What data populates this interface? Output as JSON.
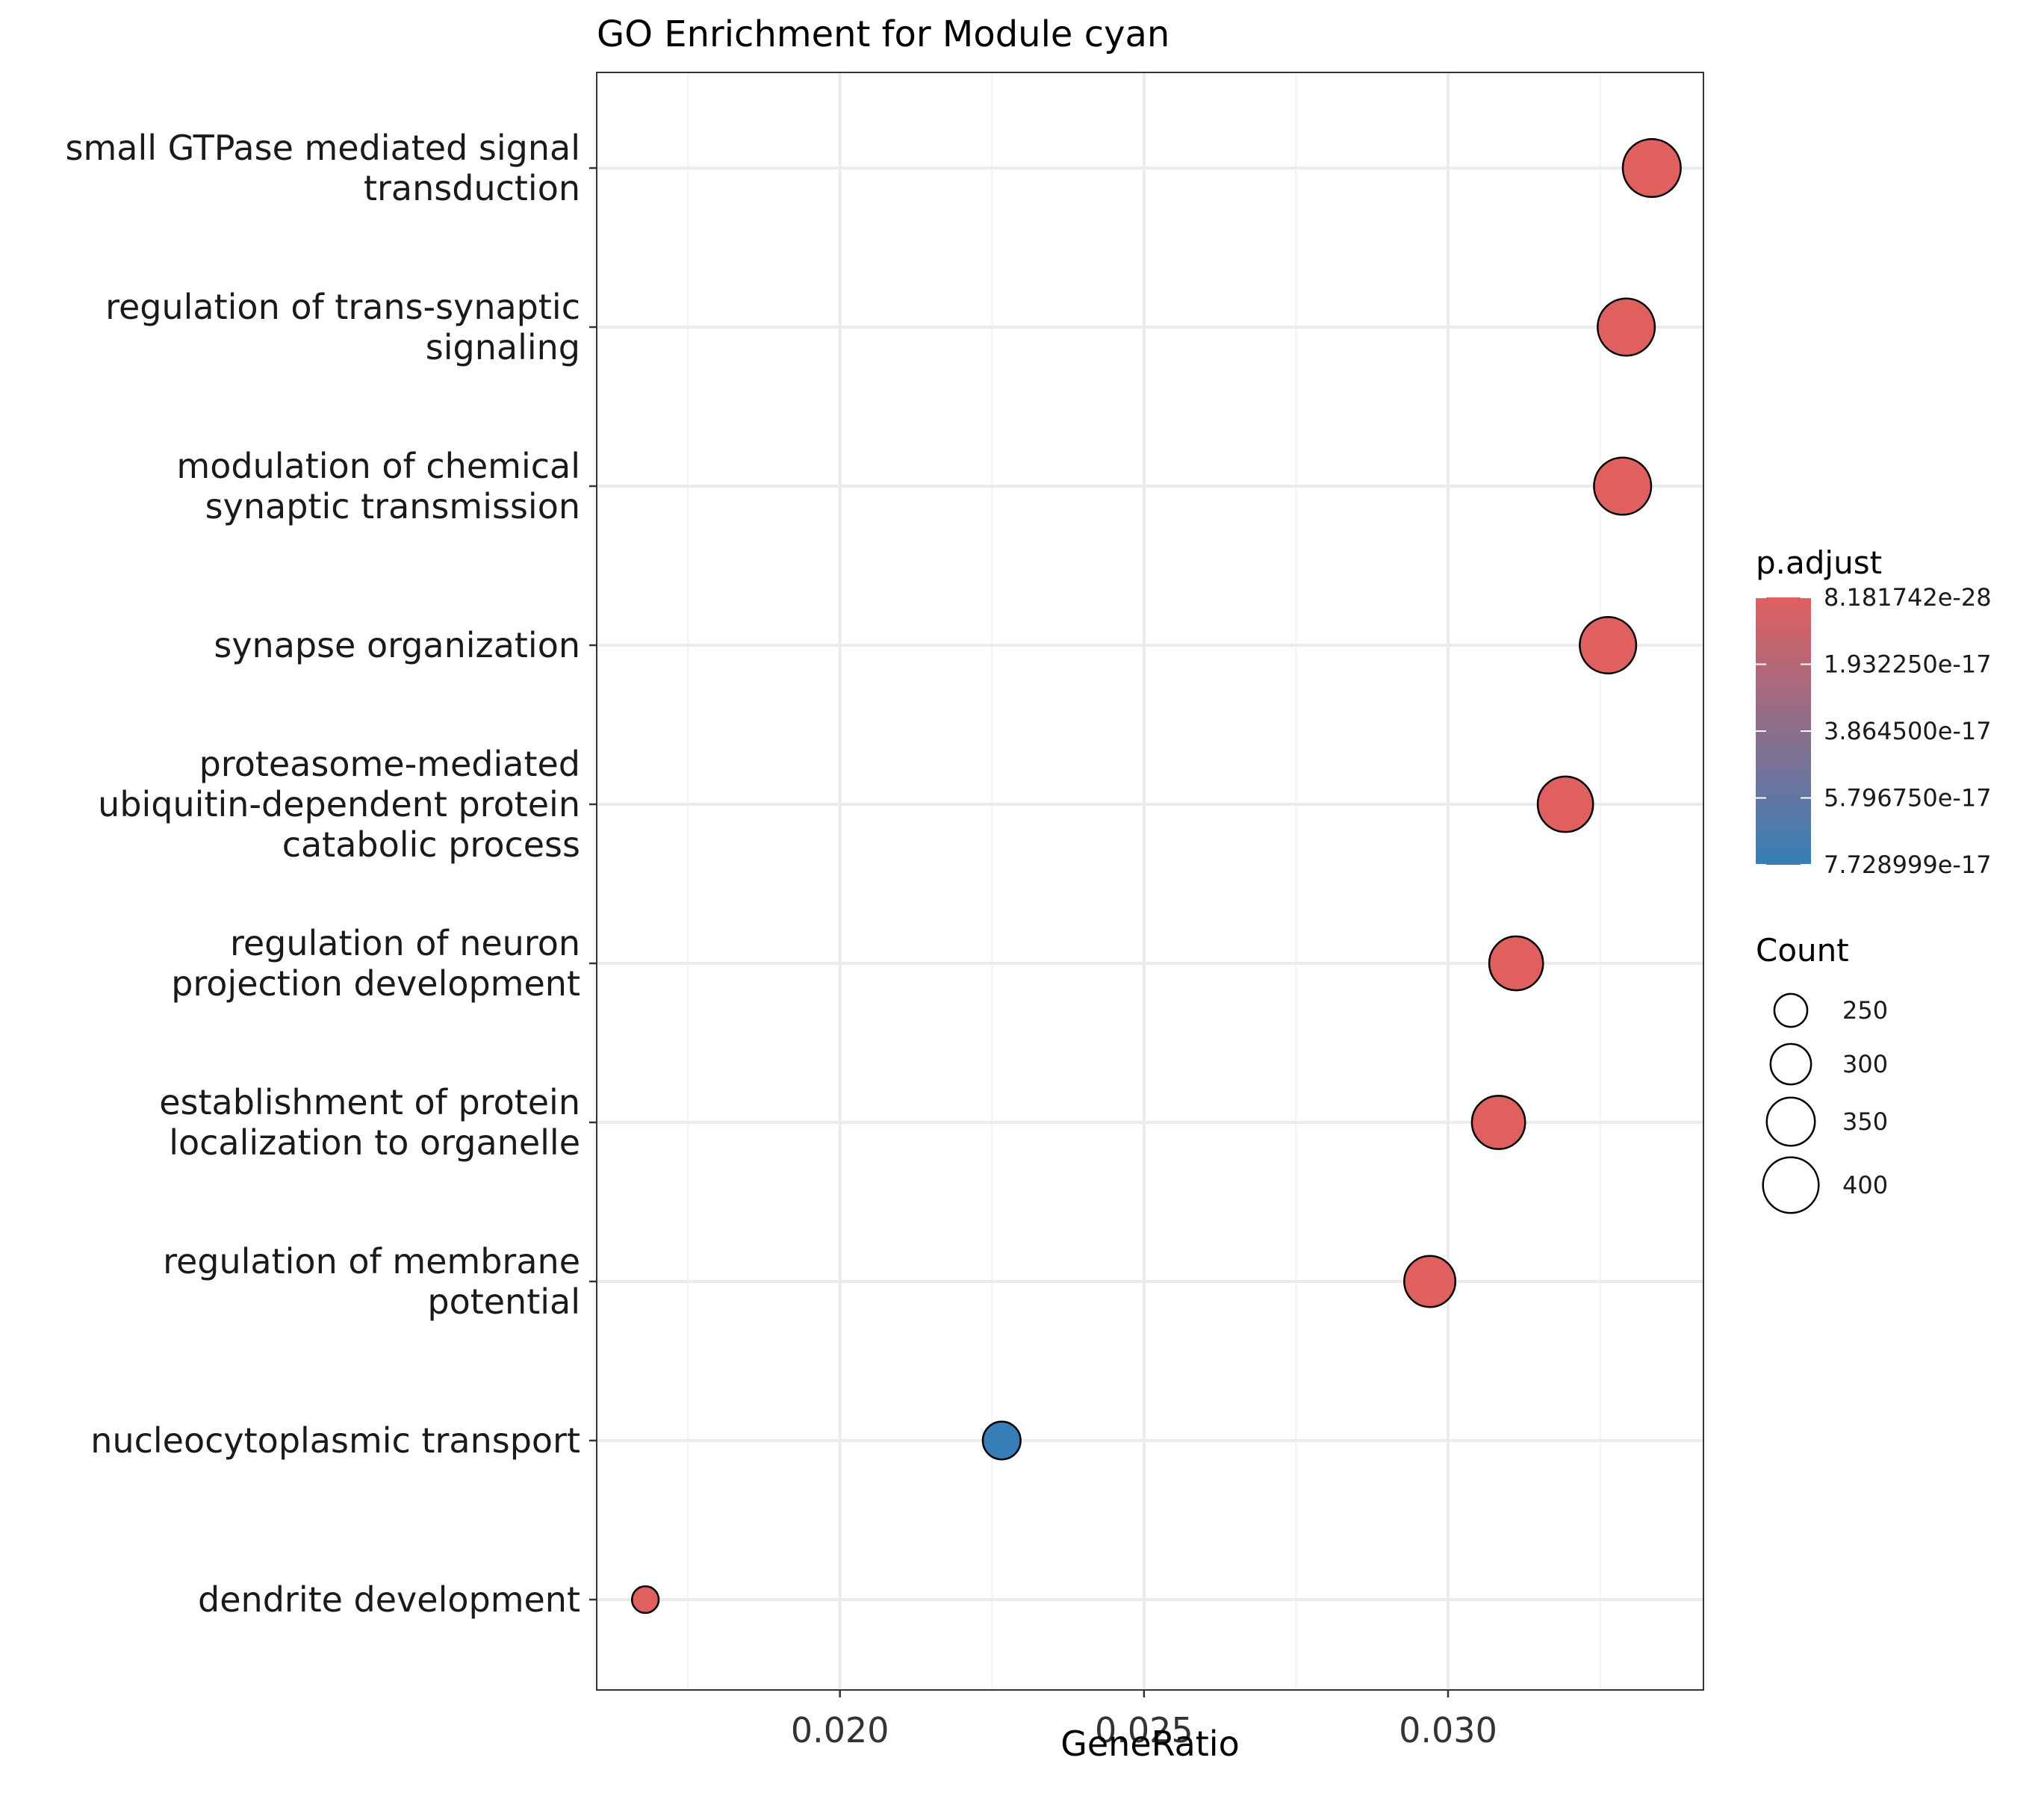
{
  "chart_data": {
    "type": "scatter",
    "title": "GO Enrichment for Module cyan",
    "xlabel": "GeneRatio",
    "ylabel": "",
    "xlim": [
      0.016,
      0.0342
    ],
    "xticks": [
      0.02,
      0.025,
      0.03
    ],
    "xtick_labels": [
      "0.020",
      "0.025",
      "0.030"
    ],
    "xminor": [
      0.0175,
      0.0225,
      0.0275,
      0.0325
    ],
    "grid": true,
    "categories": [
      [
        "small GTPase mediated signal",
        "transduction"
      ],
      [
        "regulation of trans-synaptic",
        "signaling"
      ],
      [
        "modulation of chemical",
        "synaptic transmission"
      ],
      [
        "synapse organization"
      ],
      [
        "proteasome-mediated",
        "ubiquitin-dependent protein",
        "catabolic process"
      ],
      [
        "regulation of neuron",
        "projection development"
      ],
      [
        "establishment of protein",
        "localization to organelle"
      ],
      [
        "regulation of membrane",
        "potential"
      ],
      [
        "nucleocytoplasmic transport"
      ],
      [
        "dendrite development"
      ]
    ],
    "points": [
      {
        "gene_ratio": 0.03335,
        "count": 415,
        "p_adjust": 1e-27
      },
      {
        "gene_ratio": 0.03293,
        "count": 410,
        "p_adjust": 1e-27
      },
      {
        "gene_ratio": 0.03287,
        "count": 410,
        "p_adjust": 1e-27
      },
      {
        "gene_ratio": 0.03263,
        "count": 405,
        "p_adjust": 1e-27
      },
      {
        "gene_ratio": 0.03193,
        "count": 398,
        "p_adjust": 1e-27
      },
      {
        "gene_ratio": 0.03112,
        "count": 388,
        "p_adjust": 1e-27
      },
      {
        "gene_ratio": 0.03083,
        "count": 384,
        "p_adjust": 1e-27
      },
      {
        "gene_ratio": 0.0297,
        "count": 370,
        "p_adjust": 1e-27
      },
      {
        "gene_ratio": 0.02266,
        "count": 282,
        "p_adjust": 7.728999e-17
      },
      {
        "gene_ratio": 0.0168,
        "count": 209,
        "p_adjust": 1e-27
      }
    ],
    "color_legend": {
      "title": "p.adjust",
      "range": [
        8.181742e-28,
        7.728999e-17
      ],
      "breaks": [
        8.181742e-28,
        1.93225e-17,
        3.8645e-17,
        5.79675e-17,
        7.728999e-17
      ],
      "labels": [
        "8.181742e-28",
        "1.932250e-17",
        "3.864500e-17",
        "5.796750e-17",
        "7.728999e-17"
      ],
      "low_color": "#E0605F",
      "high_color": "#377EB8"
    },
    "size_legend": {
      "title": "Count",
      "breaks": [
        250,
        300,
        350,
        400
      ],
      "labels": [
        "250",
        "300",
        "350",
        "400"
      ]
    },
    "legend_position": "right"
  }
}
